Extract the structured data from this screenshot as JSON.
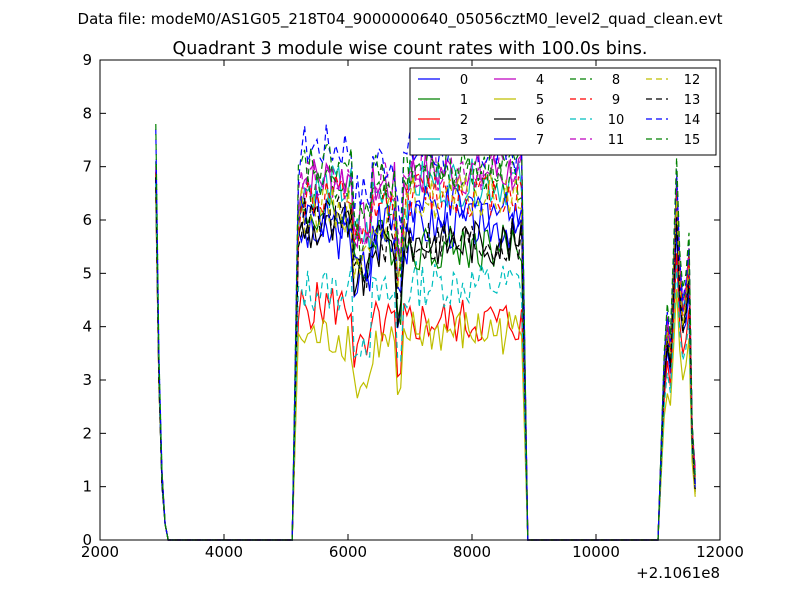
{
  "chart_data": {
    "type": "line",
    "suptitle": "Data file: modeM0/AS1G05_218T04_9000000640_05056cztM0_level2_quad_clean.evt",
    "title": "Quadrant 3 module wise count rates with 100.0s bins.",
    "xlabel": "",
    "ylabel": "",
    "x_offset_label": "+2.1061e8",
    "xlim": [
      2000,
      12000
    ],
    "ylim": [
      0,
      9
    ],
    "x_ticks": [
      2000,
      4000,
      6000,
      8000,
      10000,
      12000
    ],
    "y_ticks": [
      0,
      1,
      2,
      3,
      4,
      5,
      6,
      7,
      8,
      9
    ],
    "grid": false,
    "legend_position": "top-right",
    "series": [
      {
        "name": "0",
        "color": "#0000ff",
        "style": "solid",
        "level1": 6.7,
        "level2": 5.7,
        "level3": 5.9,
        "level4": 5.2
      },
      {
        "name": "1",
        "color": "#008000",
        "style": "solid",
        "level1": 6.9,
        "level2": 6.1,
        "level3": 5.5,
        "level4": 5.6
      },
      {
        "name": "2",
        "color": "#ff0000",
        "style": "solid",
        "level1": 6.5,
        "level2": 4.4,
        "level3": 4.1,
        "level4": 4.8
      },
      {
        "name": "3",
        "color": "#00bfbf",
        "style": "solid",
        "level1": 7.0,
        "level2": 6.6,
        "level3": 6.7,
        "level4": 5.9
      },
      {
        "name": "4",
        "color": "#bf00bf",
        "style": "solid",
        "level1": 6.8,
        "level2": 6.8,
        "level3": 6.9,
        "level4": 6.0
      },
      {
        "name": "5",
        "color": "#bfbf00",
        "style": "solid",
        "level1": 6.4,
        "level2": 3.8,
        "level3": 3.9,
        "level4": 4.2
      },
      {
        "name": "6",
        "color": "#000000",
        "style": "solid",
        "level1": 6.6,
        "level2": 5.8,
        "level3": 5.6,
        "level4": 5.5
      },
      {
        "name": "7",
        "color": "#0000ff",
        "style": "solid",
        "level1": 6.8,
        "level2": 6.1,
        "level3": 6.2,
        "level4": 5.8
      },
      {
        "name": "8",
        "color": "#008000",
        "style": "dashed",
        "level1": 7.1,
        "level2": 6.6,
        "level3": 6.8,
        "level4": 6.0
      },
      {
        "name": "9",
        "color": "#ff0000",
        "style": "dashed",
        "level1": 6.9,
        "level2": 6.4,
        "level3": 6.5,
        "level4": 5.9
      },
      {
        "name": "10",
        "color": "#00bfbf",
        "style": "dashed",
        "level1": 6.7,
        "level2": 4.7,
        "level3": 4.8,
        "level4": 4.6
      },
      {
        "name": "11",
        "color": "#bf00bf",
        "style": "dashed",
        "level1": 7.0,
        "level2": 6.7,
        "level3": 7.0,
        "level4": 6.1
      },
      {
        "name": "12",
        "color": "#bfbf00",
        "style": "dashed",
        "level1": 6.6,
        "level2": 6.2,
        "level3": 6.4,
        "level4": 5.7
      },
      {
        "name": "13",
        "color": "#000000",
        "style": "dashed",
        "level1": 6.8,
        "level2": 6.0,
        "level3": 5.6,
        "level4": 5.4
      },
      {
        "name": "14",
        "color": "#0000ff",
        "style": "dashed",
        "level1": 7.7,
        "level2": 7.4,
        "level3": 7.3,
        "level4": 6.2
      },
      {
        "name": "15",
        "color": "#008000",
        "style": "dashed",
        "level1": 7.8,
        "level2": 7.0,
        "level3": 7.0,
        "level4": 6.4
      }
    ]
  }
}
